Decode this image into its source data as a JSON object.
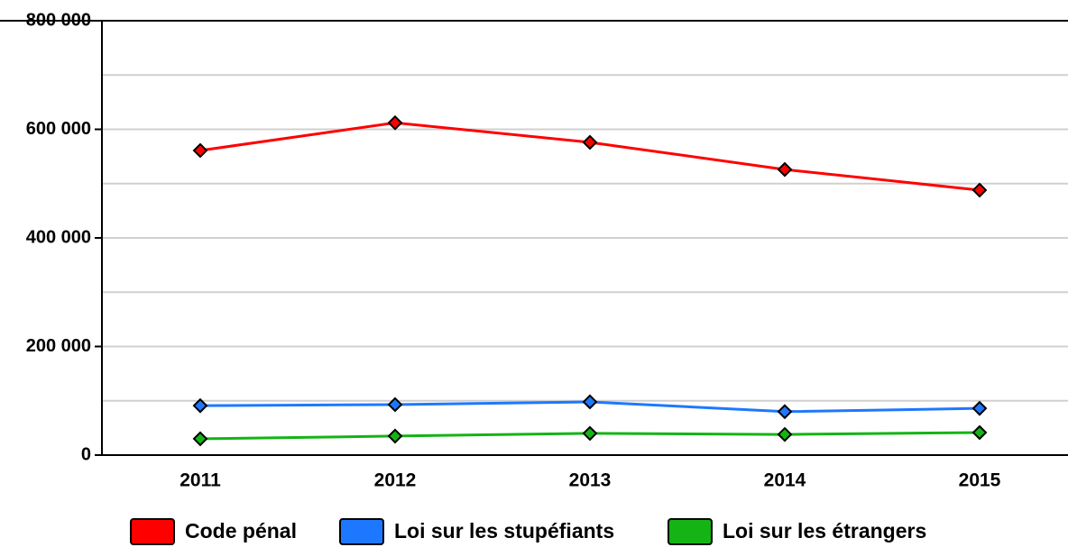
{
  "chart_data": {
    "type": "line",
    "categories": [
      "2011",
      "2012",
      "2013",
      "2014",
      "2015"
    ],
    "series": [
      {
        "name": "Code pénal",
        "color": "#ff0000",
        "values": [
          561000,
          612000,
          576000,
          526000,
          488000
        ]
      },
      {
        "name": "Loi sur les stupéfiants",
        "color": "#1e78ff",
        "values": [
          91000,
          93000,
          98000,
          80000,
          86000
        ]
      },
      {
        "name": "Loi sur les étrangers",
        "color": "#14b414",
        "values": [
          30000,
          35000,
          40000,
          38000,
          41500
        ]
      }
    ],
    "ylim": [
      0,
      800000
    ],
    "yticks": [
      {
        "value": 0,
        "label": "0"
      },
      {
        "value": 200000,
        "label": "200 000"
      },
      {
        "value": 400000,
        "label": "400 000"
      },
      {
        "value": 600000,
        "label": "600 000"
      },
      {
        "value": 800000,
        "label": "800 000"
      }
    ],
    "grid": true,
    "minor_yticks": [
      100000,
      300000,
      500000,
      700000
    ],
    "legend": "bottom"
  }
}
